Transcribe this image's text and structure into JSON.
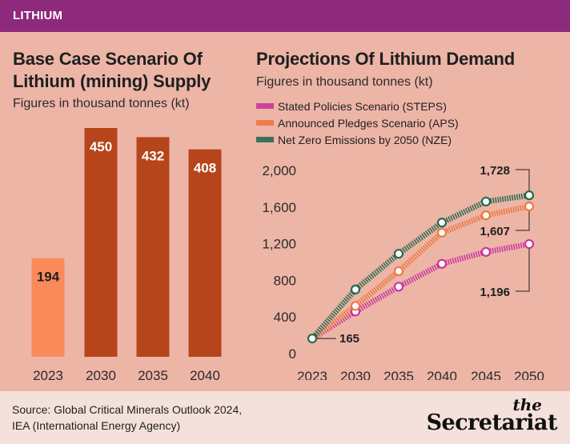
{
  "header": {
    "tag": "LITHIUM"
  },
  "left": {
    "title_line1": "Base Case Scenario Of",
    "title_line2": "Lithium (mining) Supply",
    "subtitle": "Figures in thousand tonnes (kt)"
  },
  "right": {
    "title": "Projections Of Lithium Demand",
    "subtitle": "Figures in thousand tonnes (kt)"
  },
  "footer": {
    "source_line1": "Source: Global Critical Minerals Outlook 2024,",
    "source_line2": "IEA (International Energy Agency)",
    "brand_small": "the",
    "brand": "Secretariat"
  },
  "colors": {
    "bar_highlight": "#fb8a5a",
    "bar": "#b6451b",
    "steps": "#c9359f",
    "aps": "#ec7840",
    "nze": "#27694e"
  },
  "chart_data": [
    {
      "type": "bar",
      "title": "Base Case Scenario Of Lithium (mining) Supply",
      "subtitle": "Figures in thousand tonnes (kt)",
      "categories": [
        "2023",
        "2030",
        "2035",
        "2040"
      ],
      "values": [
        194,
        450,
        432,
        408
      ],
      "data_labels": [
        "194",
        "450",
        "432",
        "408"
      ],
      "ylim": [
        0,
        450
      ]
    },
    {
      "type": "line",
      "title": "Projections Of Lithium Demand",
      "subtitle": "Figures in thousand tonnes (kt)",
      "x": [
        2023,
        2030,
        2035,
        2040,
        2045,
        2050
      ],
      "x_ticks": [
        "2023",
        "2030",
        "2035",
        "2040",
        "2045",
        "2050"
      ],
      "y_ticks": [
        "0",
        "400",
        "800",
        "1,200",
        "1,600",
        "2,000"
      ],
      "ylim": [
        0,
        2000
      ],
      "legend_position": "top-left",
      "series": [
        {
          "name": "Stated Policies Scenario (STEPS)",
          "color_key": "steps",
          "values": [
            165,
            460,
            730,
            980,
            1110,
            1196
          ]
        },
        {
          "name": "Announced Pledges Scenario (APS)",
          "color_key": "aps",
          "values": [
            165,
            520,
            900,
            1320,
            1510,
            1607
          ]
        },
        {
          "name": "Net Zero Emissions by 2050 (NZE)",
          "color_key": "nze",
          "values": [
            165,
            700,
            1090,
            1430,
            1660,
            1728
          ]
        }
      ],
      "annotations": [
        {
          "label": "165",
          "x": 2023,
          "y": 165
        },
        {
          "label": "1,728",
          "x": 2050,
          "y": 1728
        },
        {
          "label": "1,607",
          "x": 2050,
          "y": 1607
        },
        {
          "label": "1,196",
          "x": 2050,
          "y": 1196
        }
      ]
    }
  ]
}
